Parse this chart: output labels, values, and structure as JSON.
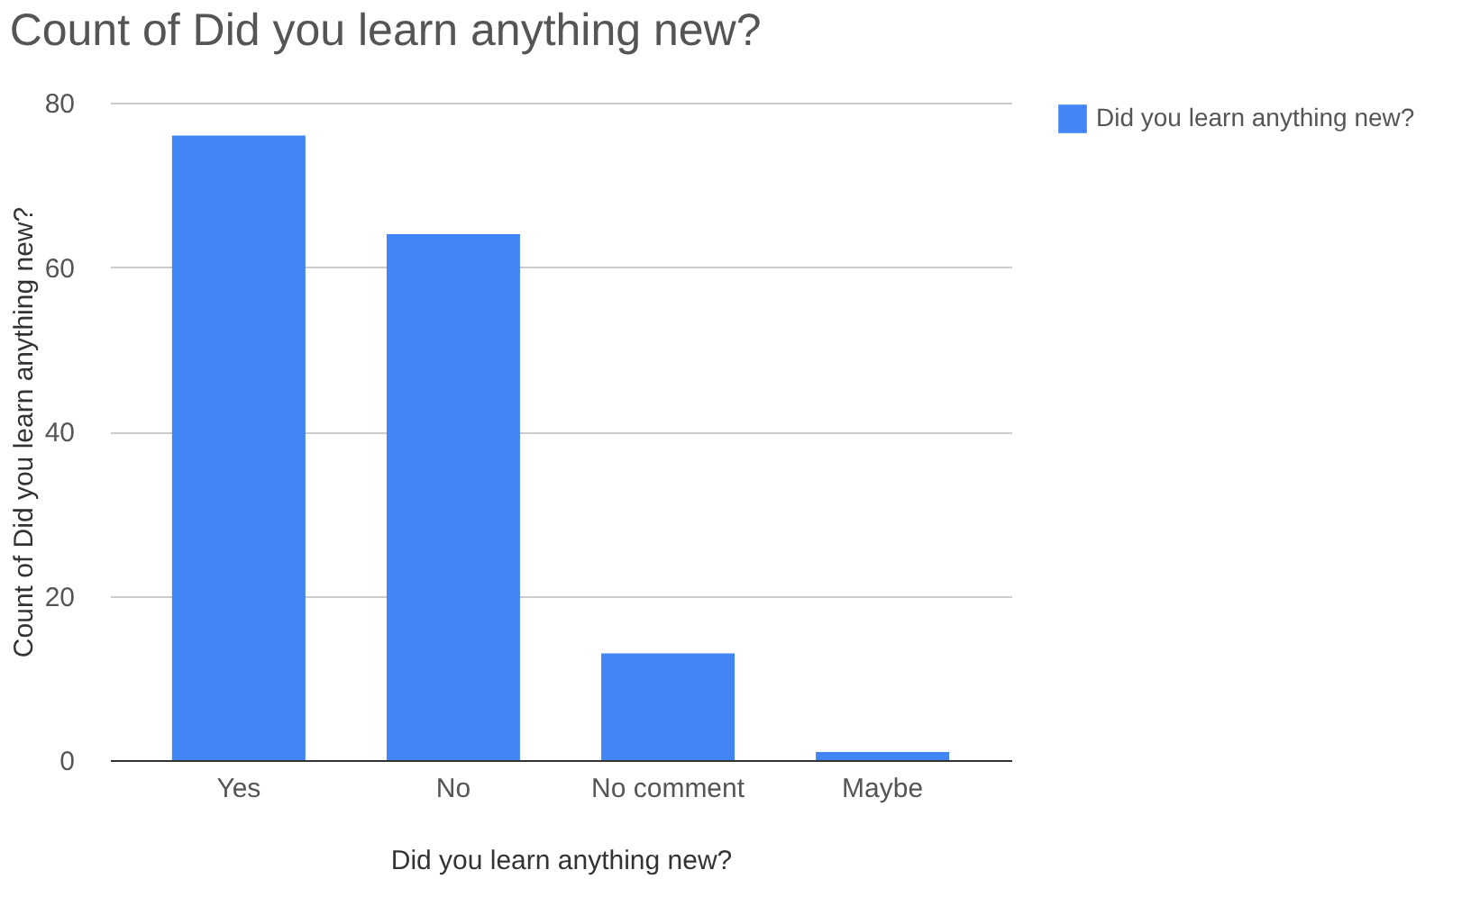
{
  "chart_data": {
    "type": "bar",
    "title": "Count of Did you learn anything new?",
    "xlabel": "Did you learn anything new?",
    "ylabel": "Count of Did you learn anything new?",
    "categories": [
      "Yes",
      "No",
      "No comment",
      "Maybe"
    ],
    "series": [
      {
        "name": "Did you learn anything new?",
        "color": "#4285f4",
        "values": [
          76,
          64,
          13,
          1
        ]
      }
    ],
    "ylim": [
      0,
      80
    ],
    "yticks": [
      0,
      20,
      40,
      60,
      80
    ],
    "grid": "y",
    "legend": "top right"
  }
}
